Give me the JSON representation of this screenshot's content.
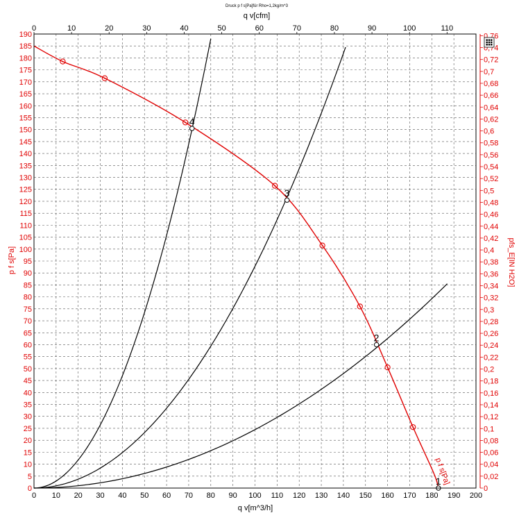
{
  "chart_data": {
    "type": "line",
    "title": "Druck p f s[Pa]für Rho=1,2kg/m^3",
    "xlabel": "q v[m^3/h]",
    "x2label": "q v[cfm]",
    "ylabel": "p f s[Pa]",
    "y2label": "pfs_E[IN H2O]",
    "xlim": [
      0,
      200
    ],
    "ylim": [
      0,
      190
    ],
    "x2lim": [
      0,
      117.7
    ],
    "y2lim": [
      0,
      0.7628
    ],
    "x_ticks": [
      "0",
      "10",
      "20",
      "30",
      "40",
      "50",
      "60",
      "70",
      "80",
      "90",
      "100",
      "110",
      "120",
      "130",
      "140",
      "150",
      "160",
      "170",
      "180",
      "190",
      "200"
    ],
    "y_ticks": [
      "0",
      "5",
      "10",
      "15",
      "20",
      "25",
      "30",
      "35",
      "40",
      "45",
      "50",
      "55",
      "60",
      "65",
      "70",
      "75",
      "80",
      "85",
      "90",
      "95",
      "100",
      "105",
      "110",
      "115",
      "120",
      "125",
      "130",
      "135",
      "140",
      "145",
      "150",
      "155",
      "160",
      "165",
      "170",
      "175",
      "180",
      "185",
      "190"
    ],
    "x2_ticks": [
      "0",
      "10",
      "20",
      "30",
      "40",
      "50",
      "60",
      "70",
      "80",
      "90",
      "100",
      "110"
    ],
    "y2_ticks": [
      "0",
      "0,02",
      "0,04",
      "0,06",
      "0,08",
      "0,1",
      "0,12",
      "0,14",
      "0,16",
      "0,18",
      "0,2",
      "0,22",
      "0,24",
      "0,26",
      "0,28",
      "0,3",
      "0,32",
      "0,34",
      "0,36",
      "0,38",
      "0,4",
      "0,42",
      "0,44",
      "0,46",
      "0,48",
      "0,5",
      "0,52",
      "0,54",
      "0,56",
      "0,58",
      "0,6",
      "0,62",
      "0,64",
      "0,66",
      "0,68",
      "0,7",
      "0,72",
      "0,74",
      "0,76"
    ],
    "grid": true,
    "fan_curve": {
      "color": "#e00000",
      "label": "p f s[Pa]",
      "points": [
        {
          "x": 0,
          "y": 185
        },
        {
          "x": 13,
          "y": 178.5
        },
        {
          "x": 32,
          "y": 171.5
        },
        {
          "x": 68.5,
          "y": 153
        },
        {
          "x": 109,
          "y": 126.5
        },
        {
          "x": 130.5,
          "y": 101.5
        },
        {
          "x": 147.5,
          "y": 76
        },
        {
          "x": 160,
          "y": 50.5
        },
        {
          "x": 171.5,
          "y": 25.5
        },
        {
          "x": 181,
          "y": 6
        },
        {
          "x": 183,
          "y": 0
        }
      ],
      "markers": [
        {
          "x": 13,
          "y": 178.5
        },
        {
          "x": 32,
          "y": 171.5
        },
        {
          "x": 68.5,
          "y": 153
        },
        {
          "x": 109,
          "y": 126.5
        },
        {
          "x": 130.5,
          "y": 101.5
        },
        {
          "x": 147.5,
          "y": 76
        },
        {
          "x": 160,
          "y": 50.5
        },
        {
          "x": 171.5,
          "y": 25.5
        }
      ]
    },
    "system_curves": [
      {
        "color": "#000000",
        "x_end": 80,
        "y_end": 188
      },
      {
        "color": "#000000",
        "x_end": 141,
        "y_end": 184.5
      },
      {
        "color": "#000000",
        "x_end": 187,
        "y_end": 85.5
      }
    ],
    "operating_points": [
      {
        "label": "1",
        "x": 183,
        "y": 0
      },
      {
        "label": "2",
        "x": 155,
        "y": 60
      },
      {
        "label": "3",
        "x": 114.5,
        "y": 120.5
      },
      {
        "label": "4",
        "x": 71.5,
        "y": 150.5
      }
    ]
  },
  "icons": {
    "corner_icon": "grid-table-icon"
  }
}
